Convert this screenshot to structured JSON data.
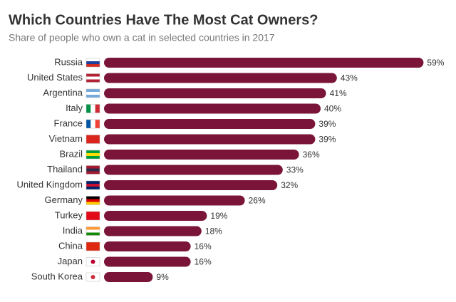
{
  "chart_data": {
    "type": "bar",
    "orientation": "horizontal",
    "title": "Which Countries Have The Most Cat Owners?",
    "subtitle": "Share of people who own a cat in selected countries in 2017",
    "categories": [
      "Russia",
      "United States",
      "Argentina",
      "Italy",
      "France",
      "Vietnam",
      "Brazil",
      "Thailand",
      "United Kingdom",
      "Germany",
      "Turkey",
      "India",
      "China",
      "Japan",
      "South Korea"
    ],
    "values": [
      59,
      43,
      41,
      40,
      39,
      39,
      36,
      33,
      32,
      26,
      19,
      18,
      16,
      16,
      9
    ],
    "value_labels": [
      "59%",
      "43%",
      "41%",
      "40%",
      "39%",
      "39%",
      "36%",
      "33%",
      "32%",
      "26%",
      "19%",
      "18%",
      "16%",
      "16%",
      "9%"
    ],
    "color": "#7a1539"
  }
}
